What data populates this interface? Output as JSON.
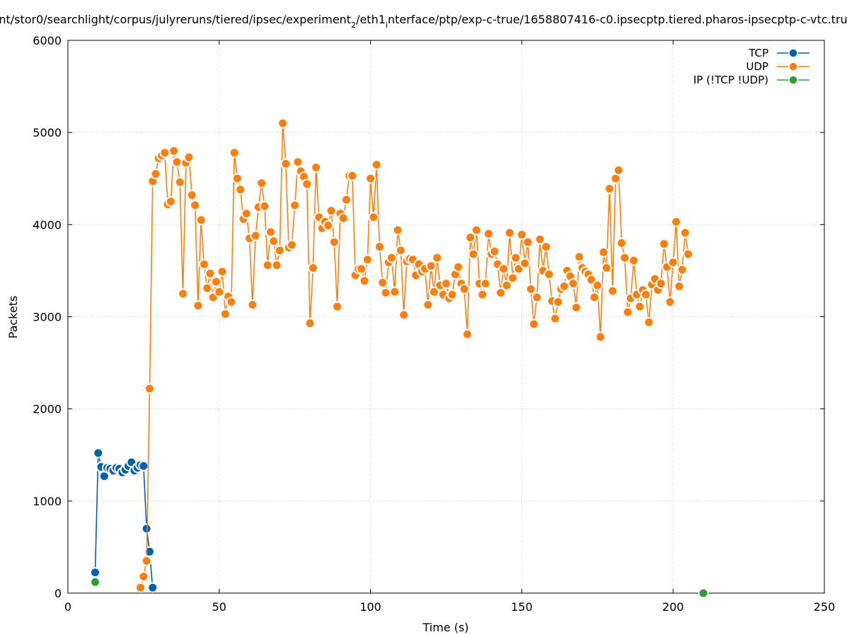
{
  "chart_data": {
    "type": "line",
    "title": "nt/stor0/searchlight/corpus/julyreruns/tiered/ipsec/experiment",
    "title_sub": "2",
    "title_mid": "/eth1",
    "title_sub2": "i",
    "title_rest": "nterface/ptp/exp-c-true/1658807416-c0.ipsecptp.tiered.pharos-ipsecptp-c-vtc.tru",
    "xlabel": "Time (s)",
    "ylabel": "Packets",
    "xlim": [
      0,
      250
    ],
    "ylim": [
      0,
      6000
    ],
    "xticks": [
      "0",
      "50",
      "100",
      "150",
      "200",
      "250"
    ],
    "yticks": [
      "0",
      "1000",
      "2000",
      "3000",
      "4000",
      "5000",
      "6000"
    ],
    "xtick_values": [
      0,
      50,
      100,
      150,
      200,
      250
    ],
    "ytick_values": [
      0,
      1000,
      2000,
      3000,
      4000,
      5000,
      6000
    ],
    "grid": true,
    "legend_position": "top-right",
    "series": [
      {
        "name": "TCP",
        "color": "#0060ad",
        "points": [
          [
            9,
            225
          ],
          [
            10,
            1520
          ],
          [
            11,
            1370
          ],
          [
            12,
            1270
          ],
          [
            13,
            1360
          ],
          [
            14,
            1350
          ],
          [
            15,
            1330
          ],
          [
            16,
            1360
          ],
          [
            17,
            1350
          ],
          [
            18,
            1310
          ],
          [
            19,
            1340
          ],
          [
            20,
            1380
          ],
          [
            21,
            1420
          ],
          [
            22,
            1330
          ],
          [
            23,
            1360
          ],
          [
            24,
            1390
          ],
          [
            25,
            1380
          ],
          [
            26,
            700
          ],
          [
            27,
            450
          ],
          [
            28,
            60
          ]
        ]
      },
      {
        "name": "UDP",
        "color": "#ff7f0e",
        "points": [
          [
            24,
            60
          ],
          [
            25,
            180
          ],
          [
            26,
            350
          ],
          [
            27,
            2220
          ],
          [
            28,
            4470
          ],
          [
            29,
            4550
          ],
          [
            30,
            4720
          ],
          [
            31,
            4750
          ],
          [
            32,
            4780
          ],
          [
            33,
            4220
          ],
          [
            34,
            4250
          ],
          [
            35,
            4800
          ],
          [
            36,
            4680
          ],
          [
            37,
            4460
          ],
          [
            38,
            3250
          ],
          [
            39,
            4670
          ],
          [
            40,
            4730
          ],
          [
            41,
            4320
          ],
          [
            42,
            4210
          ],
          [
            43,
            3120
          ],
          [
            44,
            4050
          ],
          [
            45,
            3570
          ],
          [
            46,
            3310
          ],
          [
            47,
            3470
          ],
          [
            48,
            3210
          ],
          [
            49,
            3380
          ],
          [
            50,
            3270
          ],
          [
            51,
            3490
          ],
          [
            52,
            3030
          ],
          [
            53,
            3220
          ],
          [
            54,
            3160
          ],
          [
            55,
            4780
          ],
          [
            56,
            4500
          ],
          [
            57,
            4380
          ],
          [
            58,
            4060
          ],
          [
            59,
            4120
          ],
          [
            60,
            3850
          ],
          [
            61,
            3130
          ],
          [
            62,
            3880
          ],
          [
            63,
            4190
          ],
          [
            64,
            4450
          ],
          [
            65,
            4200
          ],
          [
            66,
            3560
          ],
          [
            67,
            3920
          ],
          [
            68,
            3820
          ],
          [
            69,
            3560
          ],
          [
            70,
            3720
          ],
          [
            71,
            5100
          ],
          [
            72,
            4660
          ],
          [
            73,
            3750
          ],
          [
            74,
            3780
          ],
          [
            75,
            4210
          ],
          [
            76,
            4680
          ],
          [
            77,
            4580
          ],
          [
            78,
            4520
          ],
          [
            79,
            4440
          ],
          [
            80,
            2930
          ],
          [
            81,
            3530
          ],
          [
            82,
            4620
          ],
          [
            83,
            4080
          ],
          [
            84,
            3960
          ],
          [
            85,
            4030
          ],
          [
            86,
            3990
          ],
          [
            87,
            4150
          ],
          [
            88,
            3810
          ],
          [
            89,
            3110
          ],
          [
            90,
            4120
          ],
          [
            91,
            4070
          ],
          [
            92,
            4270
          ],
          [
            93,
            4530
          ],
          [
            94,
            4530
          ],
          [
            95,
            3450
          ],
          [
            96,
            3520
          ],
          [
            97,
            3520
          ],
          [
            98,
            3390
          ],
          [
            99,
            3620
          ],
          [
            100,
            4500
          ],
          [
            101,
            4080
          ],
          [
            102,
            4650
          ],
          [
            103,
            3760
          ],
          [
            104,
            3370
          ],
          [
            105,
            3260
          ],
          [
            106,
            3590
          ],
          [
            107,
            3640
          ],
          [
            108,
            3270
          ],
          [
            109,
            3940
          ],
          [
            110,
            3720
          ],
          [
            111,
            3020
          ],
          [
            112,
            3600
          ],
          [
            113,
            3630
          ],
          [
            114,
            3620
          ],
          [
            115,
            3450
          ],
          [
            116,
            3570
          ],
          [
            117,
            3490
          ],
          [
            118,
            3520
          ],
          [
            119,
            3130
          ],
          [
            120,
            3550
          ],
          [
            121,
            3270
          ],
          [
            122,
            3640
          ],
          [
            123,
            3340
          ],
          [
            124,
            3240
          ],
          [
            125,
            3360
          ],
          [
            126,
            3200
          ],
          [
            127,
            3240
          ],
          [
            128,
            3460
          ],
          [
            129,
            3540
          ],
          [
            130,
            3360
          ],
          [
            131,
            3300
          ],
          [
            132,
            2810
          ],
          [
            133,
            3860
          ],
          [
            134,
            3680
          ],
          [
            135,
            3940
          ],
          [
            136,
            3360
          ],
          [
            137,
            3240
          ],
          [
            138,
            3360
          ],
          [
            139,
            3900
          ],
          [
            140,
            3680
          ],
          [
            141,
            3710
          ],
          [
            142,
            3570
          ],
          [
            143,
            3260
          ],
          [
            144,
            3520
          ],
          [
            145,
            3340
          ],
          [
            146,
            3910
          ],
          [
            147,
            3420
          ],
          [
            148,
            3640
          ],
          [
            149,
            3520
          ],
          [
            150,
            3890
          ],
          [
            151,
            3580
          ],
          [
            152,
            3810
          ],
          [
            153,
            3300
          ],
          [
            154,
            2920
          ],
          [
            155,
            3210
          ],
          [
            156,
            3840
          ],
          [
            157,
            3500
          ],
          [
            158,
            3760
          ],
          [
            159,
            3460
          ],
          [
            160,
            3170
          ],
          [
            161,
            2980
          ],
          [
            162,
            3160
          ],
          [
            163,
            3300
          ],
          [
            164,
            3330
          ],
          [
            165,
            3500
          ],
          [
            166,
            3440
          ],
          [
            167,
            3360
          ],
          [
            168,
            3100
          ],
          [
            169,
            3650
          ],
          [
            170,
            3530
          ],
          [
            171,
            3490
          ],
          [
            172,
            3460
          ],
          [
            173,
            3400
          ],
          [
            174,
            3210
          ],
          [
            175,
            3340
          ],
          [
            176,
            2780
          ],
          [
            177,
            3700
          ],
          [
            178,
            3530
          ],
          [
            179,
            4390
          ],
          [
            180,
            3280
          ],
          [
            181,
            4500
          ],
          [
            182,
            4590
          ],
          [
            183,
            3800
          ],
          [
            184,
            3640
          ],
          [
            185,
            3050
          ],
          [
            186,
            3200
          ],
          [
            187,
            3610
          ],
          [
            188,
            3240
          ],
          [
            189,
            3110
          ],
          [
            190,
            3290
          ],
          [
            191,
            3240
          ],
          [
            192,
            2940
          ],
          [
            193,
            3350
          ],
          [
            194,
            3410
          ],
          [
            195,
            3290
          ],
          [
            196,
            3360
          ],
          [
            197,
            3790
          ],
          [
            198,
            3540
          ],
          [
            199,
            3160
          ],
          [
            200,
            3590
          ],
          [
            201,
            4030
          ],
          [
            202,
            3330
          ],
          [
            203,
            3510
          ],
          [
            204,
            3910
          ],
          [
            205,
            3680
          ]
        ]
      },
      {
        "name": "IP (!TCP  !UDP)",
        "color": "#2ca02c",
        "points": [
          [
            9,
            120
          ],
          [
            210,
            0
          ]
        ]
      }
    ]
  }
}
